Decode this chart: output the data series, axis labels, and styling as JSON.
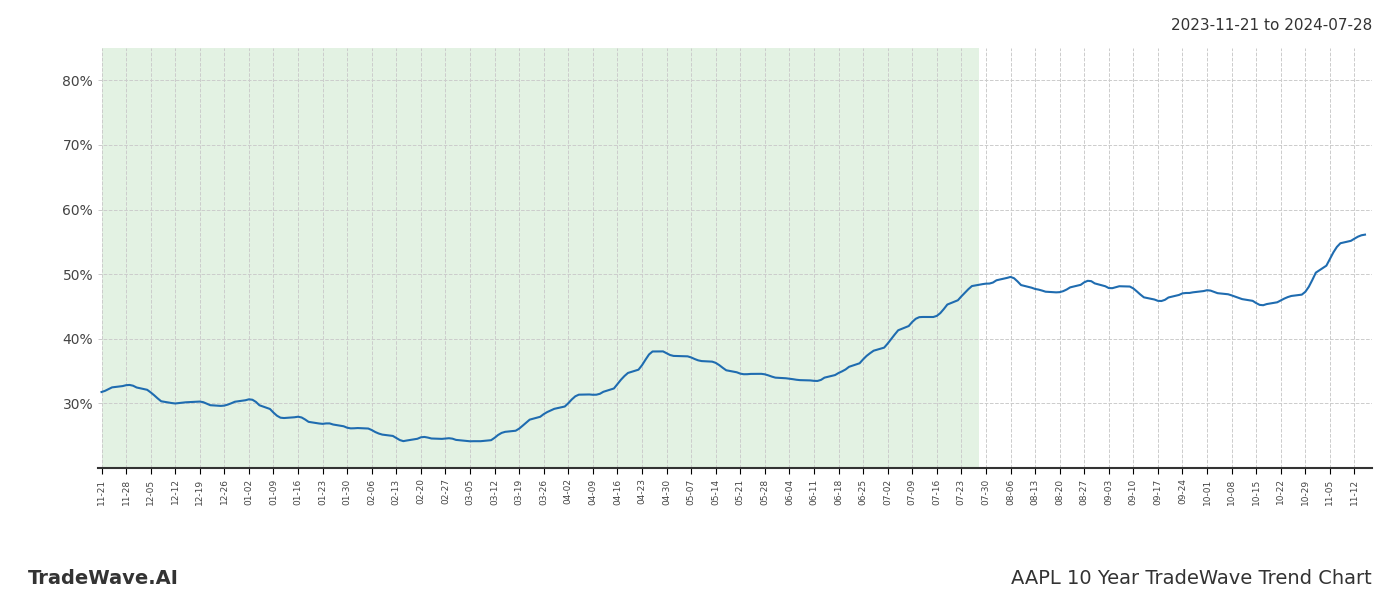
{
  "title_top_right": "2023-11-21 to 2024-07-28",
  "title_bottom_left": "TradeWave.AI",
  "title_bottom_right": "AAPL 10 Year TradeWave Trend Chart",
  "line_color": "#1f6cb0",
  "line_width": 1.5,
  "shaded_region_color": "#c8e6c9",
  "shaded_region_alpha": 0.5,
  "background_color": "#ffffff",
  "grid_color": "#cccccc",
  "grid_style": "--",
  "ylim": [
    20,
    85
  ],
  "yticks": [
    30,
    40,
    50,
    60,
    70,
    80
  ],
  "ytick_labels": [
    "30%",
    "40%",
    "50%",
    "60%",
    "70%",
    "80%"
  ]
}
